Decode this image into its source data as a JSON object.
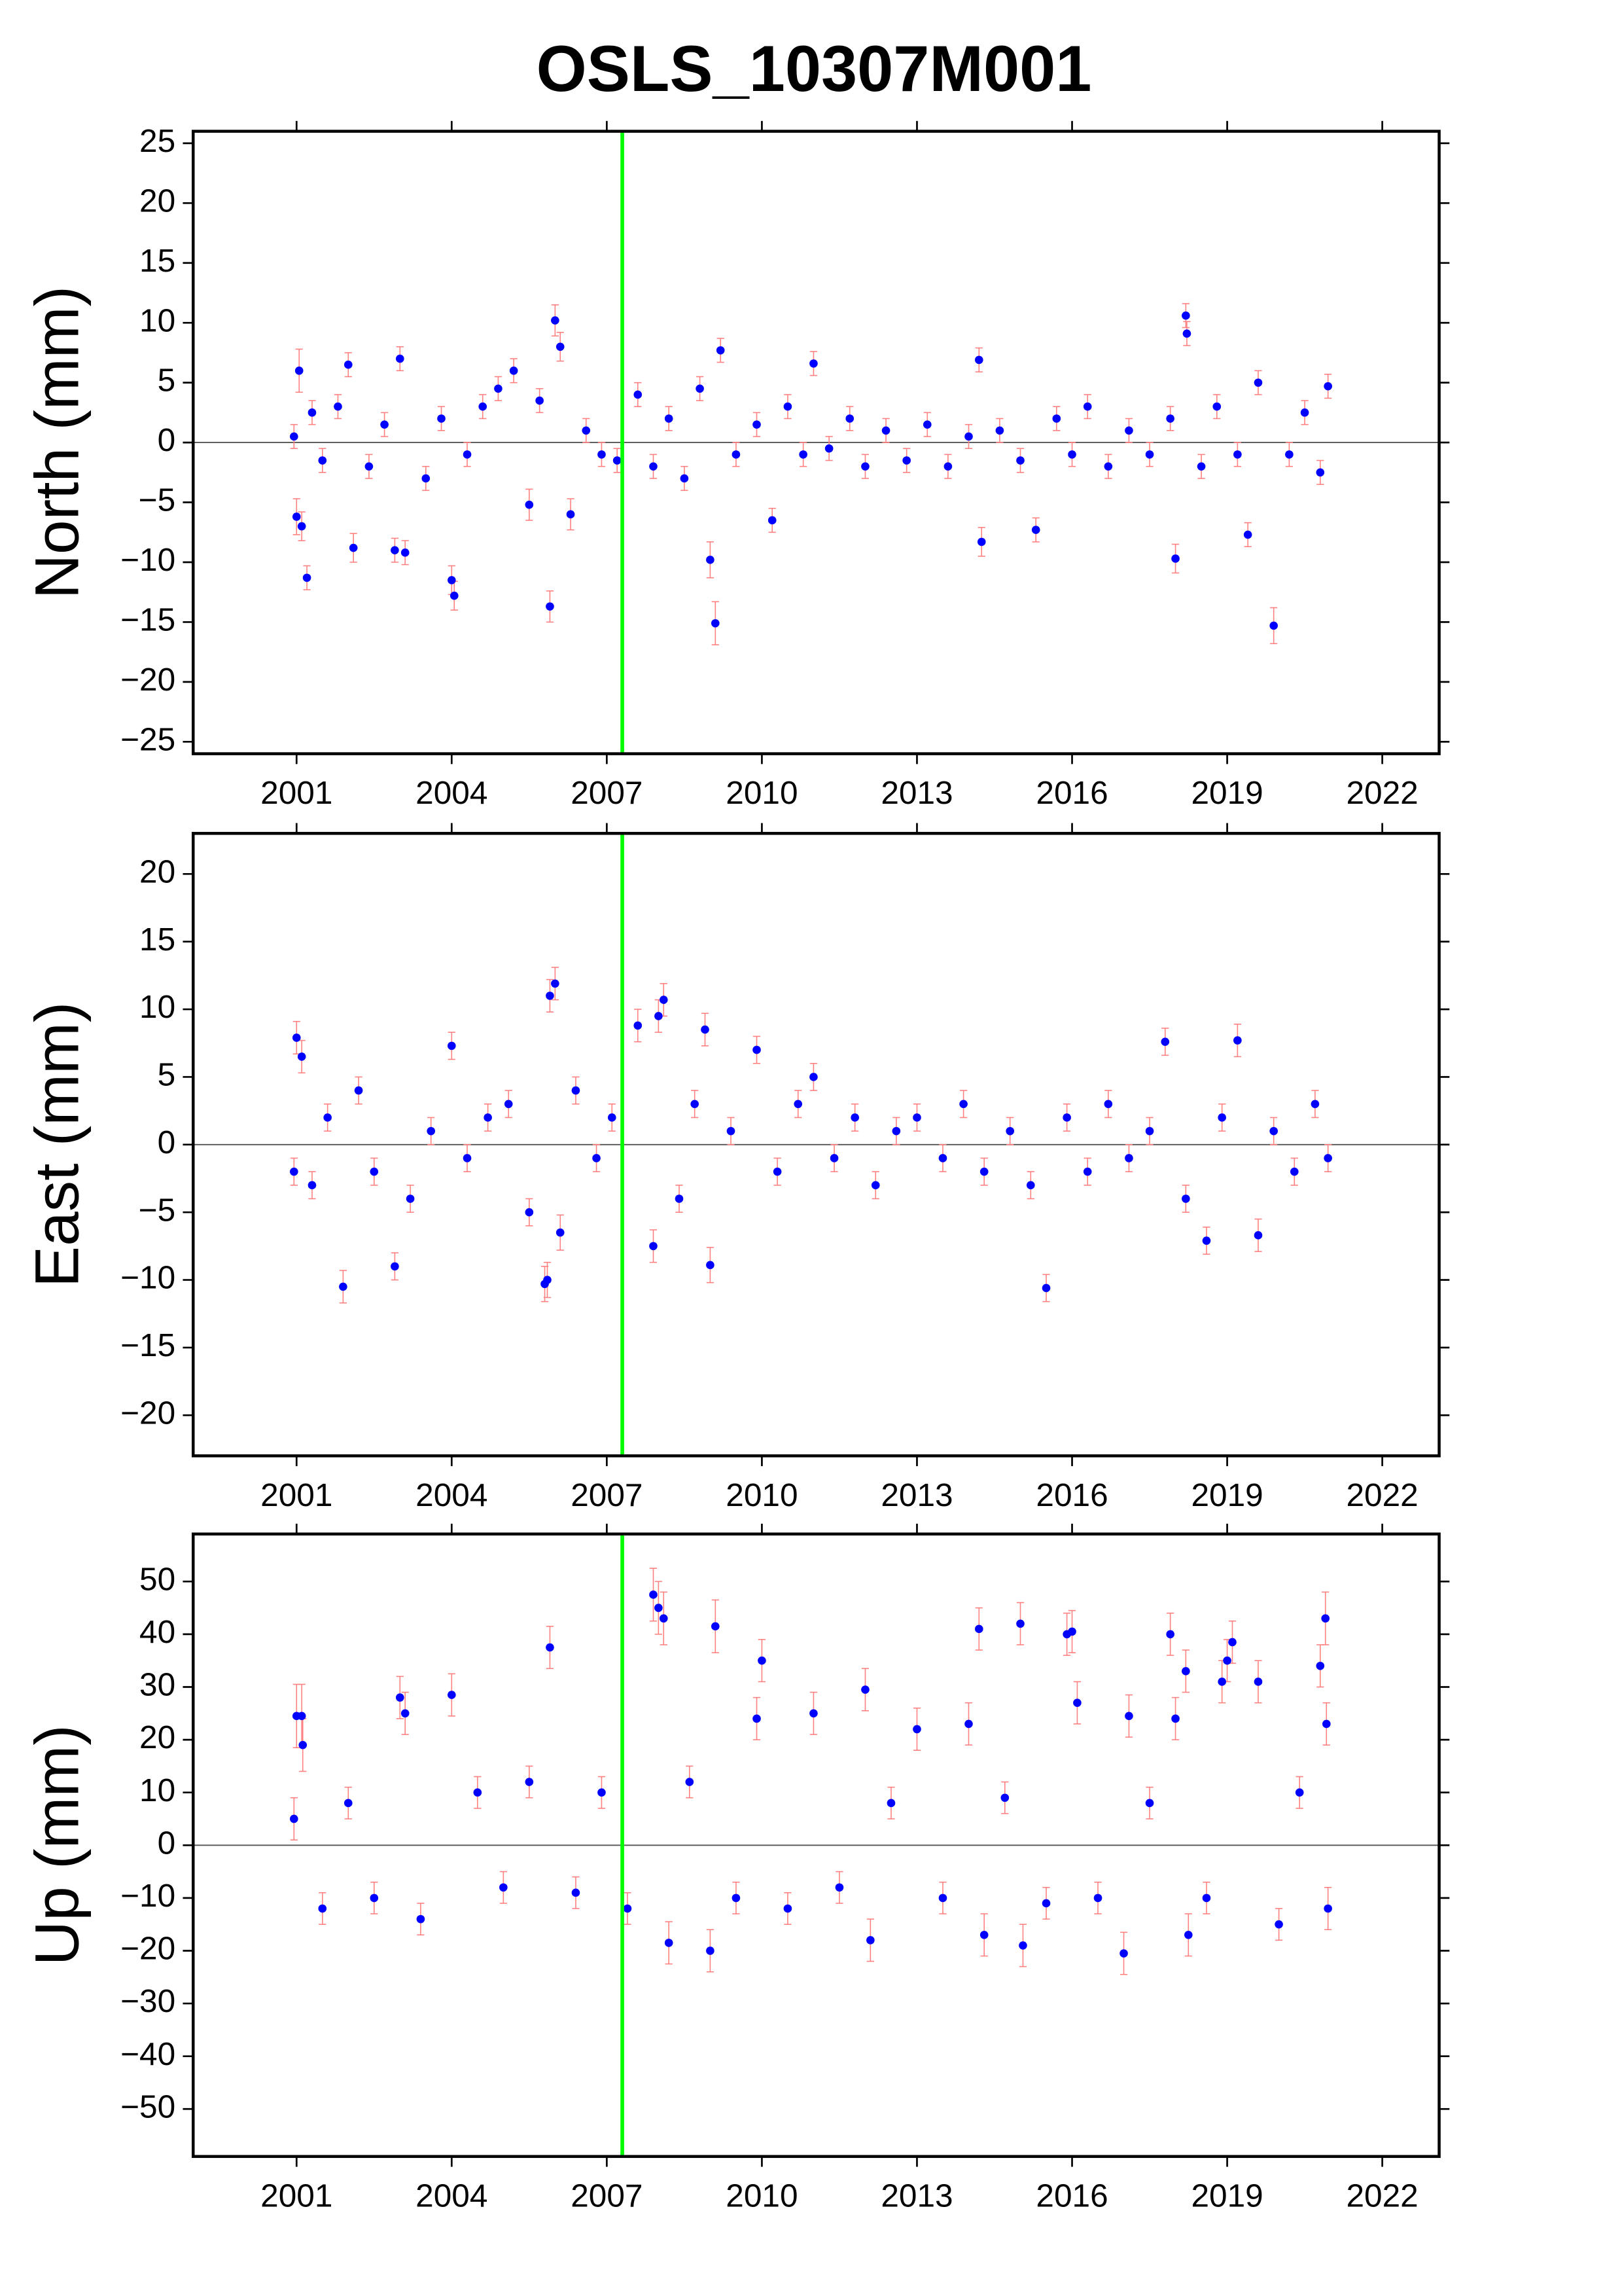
{
  "title": "OSLS_10307M001",
  "chart_data": [
    {
      "type": "scatter",
      "ylabel": "North (mm)",
      "color": "#0000ff",
      "error_color": "#ff8080",
      "zero_line": true,
      "vline": {
        "x": 2007.3,
        "color": "#00ff00"
      },
      "xlim": [
        1999,
        2023.1
      ],
      "ylim": [
        -26,
        26
      ],
      "xticks": [
        2001,
        2004,
        2007,
        2010,
        2013,
        2016,
        2019,
        2022
      ],
      "yticks": [
        -25,
        -20,
        -15,
        -10,
        -5,
        0,
        5,
        10,
        15,
        20,
        25
      ],
      "x": [
        2000.95,
        2001.0,
        2001.05,
        2001.1,
        2001.2,
        2001.3,
        2001.5,
        2001.8,
        2002.0,
        2002.1,
        2002.4,
        2002.7,
        2002.9,
        2003.0,
        2003.1,
        2003.5,
        2003.8,
        2004.0,
        2004.05,
        2004.3,
        2004.6,
        2004.9,
        2005.2,
        2005.5,
        2005.7,
        2005.9,
        2006.0,
        2006.1,
        2006.3,
        2006.6,
        2006.9,
        2007.2,
        2007.6,
        2007.9,
        2008.2,
        2008.5,
        2008.8,
        2009.0,
        2009.1,
        2009.2,
        2009.5,
        2009.9,
        2010.2,
        2010.5,
        2010.8,
        2011.0,
        2011.3,
        2011.7,
        2012.0,
        2012.4,
        2012.8,
        2013.2,
        2013.6,
        2014.0,
        2014.2,
        2014.25,
        2014.6,
        2015.0,
        2015.3,
        2015.7,
        2016.0,
        2016.3,
        2016.7,
        2017.1,
        2017.5,
        2017.9,
        2018.0,
        2018.2,
        2018.22,
        2018.5,
        2018.8,
        2019.2,
        2019.4,
        2019.6,
        2019.9,
        2020.2,
        2020.5,
        2020.8,
        2020.95
      ],
      "values": [
        0.5,
        -6.2,
        6.0,
        -7,
        -11.3,
        2.5,
        -1.5,
        3,
        6.5,
        -8.8,
        -2,
        1.5,
        -9,
        7,
        -9.2,
        -3,
        2,
        -11.5,
        -12.8,
        -1,
        3,
        4.5,
        6,
        -5.2,
        3.5,
        -13.7,
        10.2,
        8,
        -6,
        1,
        -1,
        -1.5,
        4,
        -2,
        2,
        -3,
        4.5,
        -9.8,
        -15.1,
        7.7,
        -1,
        1.5,
        -6.5,
        3,
        -1,
        6.6,
        -0.5,
        2,
        -2,
        1,
        -1.5,
        1.5,
        -2,
        0.5,
        6.9,
        -8.3,
        1,
        -1.5,
        -7.3,
        2,
        -1,
        3,
        -2,
        1,
        -1,
        2,
        -9.7,
        10.6,
        9.1,
        -2,
        3,
        -1,
        -7.7,
        5,
        -15.3,
        -1,
        2.5,
        -2.5,
        4.7
      ],
      "errors": [
        1,
        1.5,
        1.8,
        1.2,
        1,
        1,
        1,
        1,
        1,
        1.2,
        1,
        1,
        1,
        1,
        1,
        1,
        1,
        1.2,
        1.2,
        1,
        1,
        1,
        1,
        1.3,
        1,
        1.3,
        1.3,
        1.2,
        1.3,
        1,
        1,
        1,
        1,
        1,
        1,
        1,
        1,
        1.5,
        1.8,
        1,
        1,
        1,
        1,
        1,
        1,
        1,
        1,
        1,
        1,
        1,
        1,
        1,
        1,
        1,
        1,
        1.2,
        1,
        1,
        1,
        1,
        1,
        1,
        1,
        1,
        1,
        1,
        1.2,
        1,
        1,
        1,
        1,
        1,
        1,
        1,
        1.5,
        1,
        1,
        1,
        1
      ]
    },
    {
      "type": "scatter",
      "ylabel": "East (mm)",
      "color": "#0000ff",
      "error_color": "#ff8080",
      "zero_line": true,
      "vline": {
        "x": 2007.3,
        "color": "#00ff00"
      },
      "xlim": [
        1999,
        2023.1
      ],
      "ylim": [
        -23,
        23
      ],
      "xticks": [
        2001,
        2004,
        2007,
        2010,
        2013,
        2016,
        2019,
        2022
      ],
      "yticks": [
        -20,
        -15,
        -10,
        -5,
        0,
        5,
        10,
        15,
        20
      ],
      "x": [
        2000.95,
        2001.0,
        2001.1,
        2001.3,
        2001.6,
        2001.9,
        2002.2,
        2002.5,
        2002.9,
        2003.2,
        2003.6,
        2004.0,
        2004.3,
        2004.7,
        2005.1,
        2005.5,
        2005.8,
        2005.85,
        2005.9,
        2006.0,
        2006.1,
        2006.4,
        2006.8,
        2007.1,
        2007.6,
        2007.9,
        2008.0,
        2008.1,
        2008.4,
        2008.7,
        2008.9,
        2009.0,
        2009.4,
        2009.9,
        2010.3,
        2010.7,
        2011.0,
        2011.4,
        2011.8,
        2012.2,
        2012.6,
        2013.0,
        2013.5,
        2013.9,
        2014.3,
        2014.8,
        2015.2,
        2015.5,
        2015.9,
        2016.3,
        2016.7,
        2017.1,
        2017.5,
        2017.8,
        2018.2,
        2018.6,
        2018.9,
        2019.2,
        2019.6,
        2019.9,
        2020.3,
        2020.7,
        2020.95
      ],
      "values": [
        -2,
        7.9,
        6.5,
        -3,
        2,
        -10.5,
        4,
        -2,
        -9,
        -4,
        1,
        7.3,
        -1,
        2,
        3,
        -5,
        -10.3,
        -10,
        11,
        11.9,
        -6.5,
        4,
        -1,
        2,
        8.8,
        -7.5,
        9.5,
        10.7,
        -4,
        3,
        8.5,
        -8.9,
        1,
        7,
        -2,
        3,
        5,
        -1,
        2,
        -3,
        1,
        2,
        -1,
        3,
        -2,
        1,
        -3,
        -10.6,
        2,
        -2,
        3,
        -1,
        1,
        7.6,
        -4,
        -7.1,
        2,
        7.7,
        -6.7,
        1,
        -2,
        3,
        -1
      ],
      "errors": [
        1,
        1.2,
        1.2,
        1,
        1,
        1.2,
        1,
        1,
        1,
        1,
        1,
        1,
        1,
        1,
        1,
        1,
        1.3,
        1.3,
        1.2,
        1.2,
        1.3,
        1,
        1,
        1,
        1.2,
        1.2,
        1.2,
        1.2,
        1,
        1,
        1.2,
        1.3,
        1,
        1,
        1,
        1,
        1,
        1,
        1,
        1,
        1,
        1,
        1,
        1,
        1,
        1,
        1,
        1,
        1,
        1,
        1,
        1,
        1,
        1,
        1,
        1,
        1,
        1.2,
        1.2,
        1,
        1,
        1,
        1
      ]
    },
    {
      "type": "scatter",
      "ylabel": "Up (mm)",
      "color": "#0000ff",
      "error_color": "#ff8080",
      "zero_line": true,
      "vline": {
        "x": 2007.3,
        "color": "#00ff00"
      },
      "xlim": [
        1999,
        2023.1
      ],
      "ylim": [
        -59,
        59
      ],
      "xticks": [
        2001,
        2004,
        2007,
        2010,
        2013,
        2016,
        2019,
        2022
      ],
      "yticks": [
        -50,
        -40,
        -30,
        -20,
        -10,
        0,
        10,
        20,
        30,
        40,
        50
      ],
      "x": [
        2000.95,
        2001.0,
        2001.1,
        2001.12,
        2001.5,
        2002.0,
        2002.5,
        2003.0,
        2003.1,
        2003.4,
        2004.0,
        2004.5,
        2005.0,
        2005.5,
        2005.9,
        2006.4,
        2006.9,
        2007.4,
        2007.9,
        2008.0,
        2008.1,
        2008.2,
        2008.6,
        2009.0,
        2009.1,
        2009.5,
        2009.9,
        2010.0,
        2010.5,
        2011.0,
        2011.5,
        2012.0,
        2012.1,
        2012.5,
        2013.0,
        2013.5,
        2014.0,
        2014.2,
        2014.3,
        2014.7,
        2015.0,
        2015.05,
        2015.5,
        2015.9,
        2016.0,
        2016.1,
        2016.5,
        2017.0,
        2017.1,
        2017.5,
        2017.9,
        2018.0,
        2018.2,
        2018.25,
        2018.6,
        2018.9,
        2019.0,
        2019.1,
        2019.6,
        2020.0,
        2020.4,
        2020.8,
        2020.9,
        2020.92,
        2020.95
      ],
      "values": [
        5,
        24.5,
        24.5,
        19,
        -12,
        8,
        -10,
        28,
        25,
        -14,
        28.5,
        10,
        -8,
        12,
        37.5,
        -9,
        10,
        -12,
        47.5,
        45,
        43,
        -18.5,
        12,
        -20,
        41.5,
        -10,
        24,
        35,
        -12,
        25,
        -8,
        29.5,
        -18,
        8,
        22,
        -10,
        23,
        41,
        -17,
        9,
        42,
        -19,
        -11,
        40,
        40.5,
        27,
        -10,
        -20.5,
        24.5,
        8,
        40,
        24,
        33,
        -17,
        -10,
        31,
        35,
        38.5,
        31,
        -15,
        10,
        34,
        43,
        23,
        -12
      ],
      "errors": [
        4,
        6,
        6,
        5,
        3,
        3,
        3,
        4,
        4,
        3,
        4,
        3,
        3,
        3,
        4,
        3,
        3,
        3,
        5,
        5,
        5,
        4,
        3,
        4,
        5,
        3,
        4,
        4,
        3,
        4,
        3,
        4,
        4,
        3,
        4,
        3,
        4,
        4,
        4,
        3,
        4,
        4,
        3,
        4,
        4,
        4,
        3,
        4,
        4,
        3,
        4,
        4,
        4,
        4,
        3,
        4,
        4,
        4,
        4,
        3,
        3,
        4,
        5,
        4,
        4
      ]
    }
  ]
}
